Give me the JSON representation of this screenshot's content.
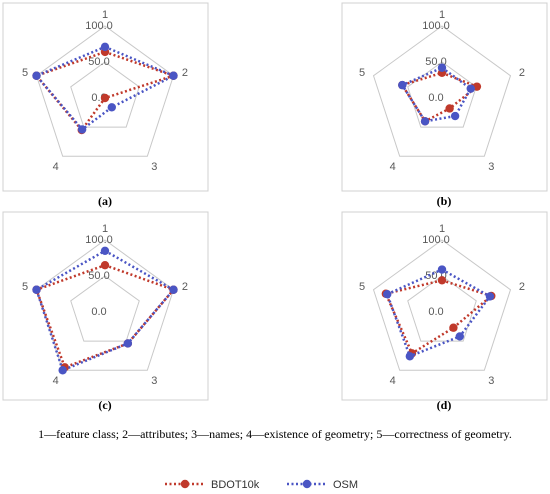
{
  "caption": "1—feature class; 2—attributes; 3—names; 4—existence of geometry; 5—correctness of geometry.",
  "legend": {
    "items": [
      {
        "label": "BDOT10k",
        "color": "#c0392b"
      },
      {
        "label": "OSM",
        "color": "#4a55c4"
      }
    ]
  },
  "chart_data": [
    {
      "type": "radar",
      "panel_label": "(a)",
      "categories": [
        "1",
        "2",
        "3",
        "4",
        "5"
      ],
      "rlim": [
        0,
        100
      ],
      "tick_labels": [
        "0.0",
        "50.0",
        "100.0"
      ],
      "series": [
        {
          "name": "BDOT10k",
          "color": "#c0392b",
          "values": [
            64,
            100,
            0,
            55,
            100
          ]
        },
        {
          "name": "OSM",
          "color": "#4a55c4",
          "values": [
            71,
            100,
            16,
            54,
            100
          ]
        }
      ]
    },
    {
      "type": "radar",
      "panel_label": "(b)",
      "categories": [
        "1",
        "2",
        "3",
        "4",
        "5"
      ],
      "rlim": [
        0,
        100
      ],
      "tick_labels": [
        "0.0",
        "50.0",
        "100.0"
      ],
      "series": [
        {
          "name": "BDOT10k",
          "color": "#c0392b",
          "values": [
            35,
            51,
            18,
            40,
            58
          ]
        },
        {
          "name": "OSM",
          "color": "#4a55c4",
          "values": [
            42,
            42,
            31,
            40,
            58
          ]
        }
      ]
    },
    {
      "type": "radar",
      "panel_label": "(c)",
      "categories": [
        "1",
        "2",
        "3",
        "4",
        "5"
      ],
      "rlim": [
        0,
        100
      ],
      "tick_labels": [
        "0.0",
        "50.0",
        "100.0"
      ],
      "series": [
        {
          "name": "BDOT10k",
          "color": "#c0392b",
          "values": [
            65,
            100,
            54,
            95,
            100
          ]
        },
        {
          "name": "OSM",
          "color": "#4a55c4",
          "values": [
            85,
            100,
            54,
            100,
            100
          ]
        }
      ]
    },
    {
      "type": "radar",
      "panel_label": "(d)",
      "categories": [
        "1",
        "2",
        "3",
        "4",
        "5"
      ],
      "rlim": [
        0,
        100
      ],
      "tick_labels": [
        "0.0",
        "50.0",
        "100.0"
      ],
      "series": [
        {
          "name": "BDOT10k",
          "color": "#c0392b",
          "values": [
            44,
            72,
            27,
            71,
            82
          ]
        },
        {
          "name": "OSM",
          "color": "#4a55c4",
          "values": [
            59,
            70,
            42,
            76,
            80
          ]
        }
      ]
    }
  ]
}
